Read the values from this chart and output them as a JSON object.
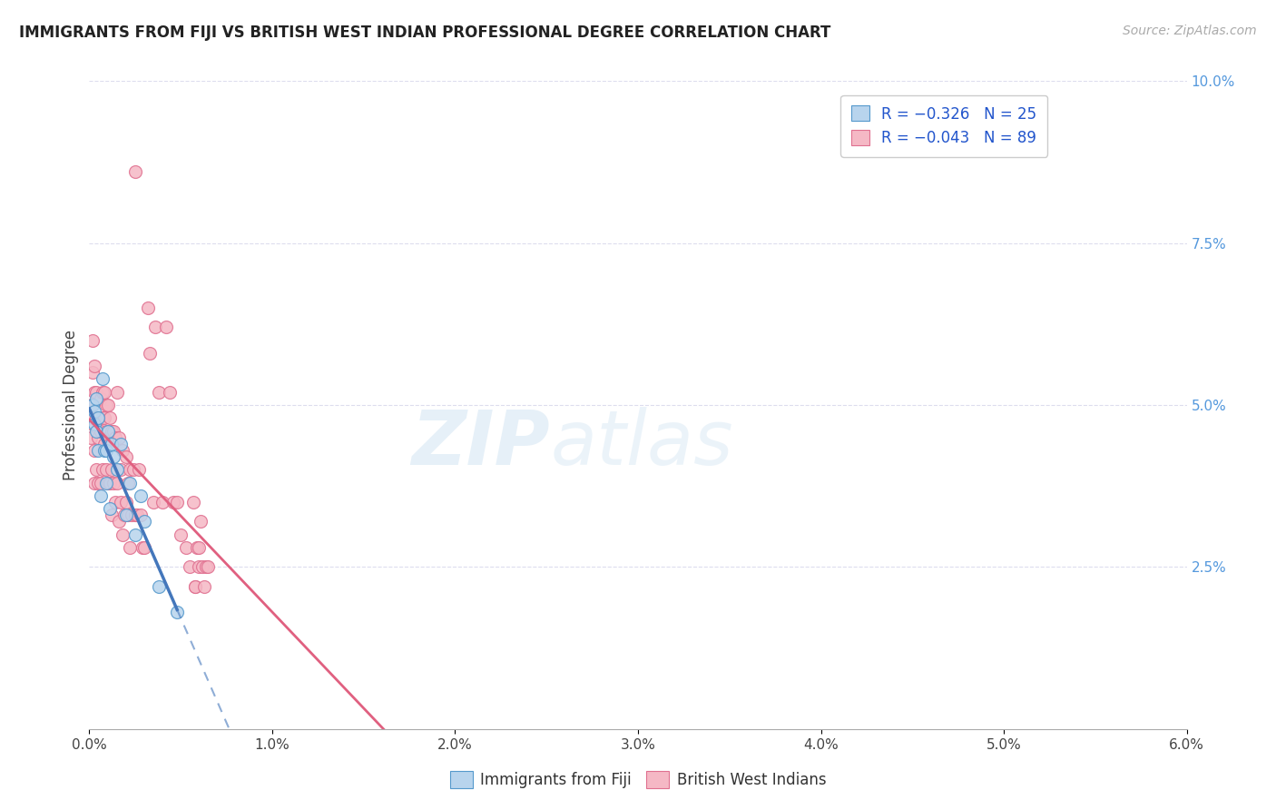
{
  "title": "IMMIGRANTS FROM FIJI VS BRITISH WEST INDIAN PROFESSIONAL DEGREE CORRELATION CHART",
  "source": "Source: ZipAtlas.com",
  "ylabel": "Professional Degree",
  "watermark": "ZIPatlas",
  "legend_fiji_R": "-0.326",
  "legend_fiji_N": "25",
  "legend_bwi_R": "-0.043",
  "legend_bwi_N": "89",
  "fiji_face_color": "#b8d4ed",
  "fiji_edge_color": "#5599cc",
  "bwi_face_color": "#f5b8c5",
  "bwi_edge_color": "#e07090",
  "fiji_line_color": "#4477bb",
  "bwi_line_color": "#e06080",
  "xlim": [
    0.0,
    0.06
  ],
  "ylim": [
    0.0,
    0.1
  ],
  "x_ticks": [
    0.0,
    0.01,
    0.02,
    0.03,
    0.04,
    0.05,
    0.06
  ],
  "y_ticks_right": [
    0.025,
    0.05,
    0.075,
    0.1
  ],
  "fiji_scatter_x": [
    0.0002,
    0.0003,
    0.0003,
    0.0004,
    0.0004,
    0.0005,
    0.0005,
    0.0006,
    0.0007,
    0.0008,
    0.0009,
    0.0009,
    0.001,
    0.0011,
    0.0012,
    0.0013,
    0.0015,
    0.0017,
    0.002,
    0.0022,
    0.0025,
    0.0028,
    0.003,
    0.0038,
    0.0048
  ],
  "fiji_scatter_y": [
    0.05,
    0.049,
    0.047,
    0.051,
    0.046,
    0.048,
    0.043,
    0.036,
    0.054,
    0.043,
    0.043,
    0.038,
    0.046,
    0.034,
    0.044,
    0.042,
    0.04,
    0.044,
    0.033,
    0.038,
    0.03,
    0.036,
    0.032,
    0.022,
    0.018
  ],
  "bwi_scatter_x": [
    0.0001,
    0.0001,
    0.0001,
    0.0002,
    0.0002,
    0.0002,
    0.0003,
    0.0003,
    0.0003,
    0.0003,
    0.0004,
    0.0004,
    0.0004,
    0.0005,
    0.0005,
    0.0005,
    0.0006,
    0.0006,
    0.0006,
    0.0007,
    0.0007,
    0.0007,
    0.0008,
    0.0008,
    0.0008,
    0.0009,
    0.0009,
    0.0009,
    0.001,
    0.001,
    0.001,
    0.0011,
    0.0011,
    0.0011,
    0.0012,
    0.0012,
    0.0012,
    0.0013,
    0.0013,
    0.0014,
    0.0014,
    0.0015,
    0.0015,
    0.0016,
    0.0016,
    0.0017,
    0.0017,
    0.0018,
    0.0018,
    0.0019,
    0.002,
    0.002,
    0.0021,
    0.0021,
    0.0022,
    0.0022,
    0.0023,
    0.0024,
    0.0025,
    0.0025,
    0.0026,
    0.0027,
    0.0028,
    0.0029,
    0.003,
    0.0032,
    0.0033,
    0.0035,
    0.0036,
    0.0038,
    0.004,
    0.0042,
    0.0044,
    0.0046,
    0.0048,
    0.005,
    0.0053,
    0.0055,
    0.0057,
    0.0059,
    0.0058,
    0.0058,
    0.006,
    0.006,
    0.0061,
    0.0062,
    0.0063,
    0.0064,
    0.0065
  ],
  "bwi_scatter_y": [
    0.05,
    0.048,
    0.045,
    0.06,
    0.055,
    0.047,
    0.056,
    0.052,
    0.043,
    0.038,
    0.052,
    0.048,
    0.04,
    0.048,
    0.045,
    0.038,
    0.051,
    0.046,
    0.038,
    0.052,
    0.048,
    0.04,
    0.052,
    0.048,
    0.044,
    0.05,
    0.046,
    0.04,
    0.05,
    0.045,
    0.038,
    0.048,
    0.044,
    0.038,
    0.046,
    0.04,
    0.033,
    0.046,
    0.038,
    0.045,
    0.035,
    0.052,
    0.038,
    0.045,
    0.032,
    0.04,
    0.035,
    0.03,
    0.043,
    0.033,
    0.035,
    0.042,
    0.038,
    0.033,
    0.04,
    0.028,
    0.033,
    0.04,
    0.033,
    0.086,
    0.033,
    0.04,
    0.033,
    0.028,
    0.028,
    0.065,
    0.058,
    0.035,
    0.062,
    0.052,
    0.035,
    0.062,
    0.052,
    0.035,
    0.035,
    0.03,
    0.028,
    0.025,
    0.035,
    0.028,
    0.022,
    0.022,
    0.025,
    0.028,
    0.032,
    0.025,
    0.022,
    0.025,
    0.025
  ]
}
